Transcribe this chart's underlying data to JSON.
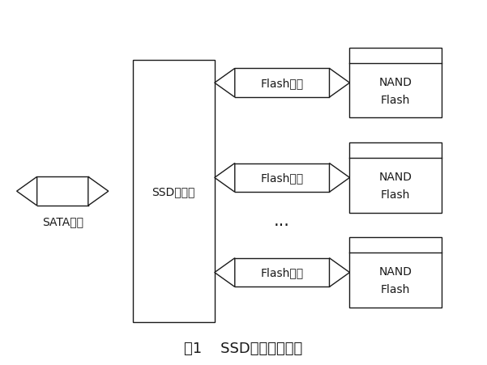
{
  "bg_color": "#ffffff",
  "title": "囱1    SSD基本组成结构",
  "title_fontsize": 13,
  "fig_width": 6.01,
  "fig_height": 4.52,
  "dpi": 100,
  "sata_label": "SATA接口",
  "ssd_label": "SSD控制器",
  "flash_label": "Flash通道",
  "nand_label1": "NAND",
  "nand_label2": "Flash",
  "line_color": "#1a1a1a",
  "text_color": "#1a1a1a",
  "font_size": 10.0
}
